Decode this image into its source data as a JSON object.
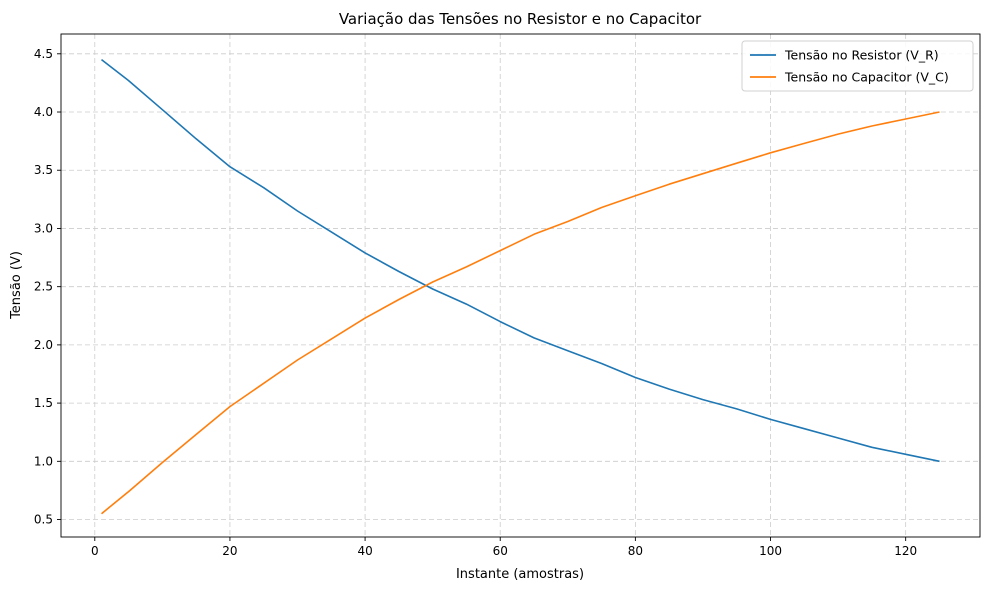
{
  "chart_data": {
    "type": "line",
    "title": "Variação das Tensões no Resistor e no Capacitor",
    "xlabel": "Instante (amostras)",
    "ylabel": "Tensão (V)",
    "xlim": [
      -5,
      131
    ],
    "ylim": [
      0.35,
      4.67
    ],
    "xticks": [
      0,
      20,
      40,
      60,
      80,
      100,
      120
    ],
    "xtick_labels": [
      "0",
      "20",
      "40",
      "60",
      "80",
      "100",
      "120"
    ],
    "yticks": [
      0.5,
      1.0,
      1.5,
      2.0,
      2.5,
      3.0,
      3.5,
      4.0,
      4.5
    ],
    "ytick_labels": [
      "0.5",
      "1.0",
      "1.5",
      "2.0",
      "2.5",
      "3.0",
      "3.5",
      "4.0",
      "4.5"
    ],
    "grid": true,
    "legend_position": "top-right",
    "series": [
      {
        "name": "Tensão no Resistor (V_R)",
        "color": "#1f77b4",
        "x": [
          1,
          5,
          10,
          15,
          20,
          25,
          30,
          35,
          40,
          45,
          50,
          55,
          60,
          65,
          70,
          75,
          80,
          85,
          90,
          95,
          100,
          105,
          110,
          115,
          120,
          125
        ],
        "y": [
          4.45,
          4.27,
          4.02,
          3.77,
          3.53,
          3.35,
          3.15,
          2.97,
          2.79,
          2.63,
          2.48,
          2.35,
          2.2,
          2.06,
          1.95,
          1.84,
          1.72,
          1.62,
          1.53,
          1.45,
          1.36,
          1.28,
          1.2,
          1.12,
          1.06,
          1.0
        ]
      },
      {
        "name": "Tensão no Capacitor (V_C)",
        "color": "#ff7f0e",
        "x": [
          1,
          5,
          10,
          15,
          20,
          25,
          30,
          35,
          40,
          45,
          50,
          55,
          60,
          65,
          70,
          75,
          80,
          85,
          90,
          95,
          100,
          105,
          110,
          115,
          120,
          125
        ],
        "y": [
          0.55,
          0.74,
          0.99,
          1.23,
          1.47,
          1.67,
          1.87,
          2.05,
          2.23,
          2.39,
          2.54,
          2.67,
          2.81,
          2.95,
          3.06,
          3.18,
          3.28,
          3.38,
          3.47,
          3.56,
          3.65,
          3.73,
          3.81,
          3.88,
          3.94,
          4.0
        ]
      }
    ]
  }
}
